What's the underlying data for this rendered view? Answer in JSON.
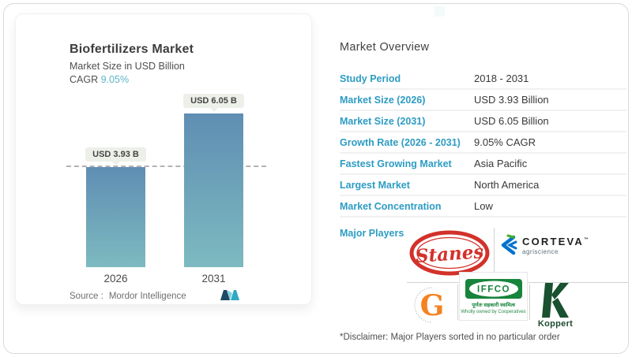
{
  "chart": {
    "title": "Biofertilizers Market",
    "subtitle": "Market Size in USD Billion",
    "cagr_label": "CAGR",
    "cagr_value": "9.05%",
    "source_label": "Source :",
    "source_value": "Mordor Intelligence",
    "chart_data": {
      "type": "bar",
      "categories": [
        "2026",
        "2031"
      ],
      "values": [
        3.93,
        6.05
      ],
      "bar_labels": [
        "USD 3.93 B",
        "USD 6.05 B"
      ],
      "title": "Biofertilizers Market",
      "ylabel": "Market Size in USD Billion",
      "ylim": [
        0,
        6.5
      ],
      "grid": "single dashed horizontal reference line at first bar value (3.93)",
      "legend_position": "none"
    }
  },
  "overview": {
    "title": "Market Overview",
    "rows": [
      {
        "label": "Study Period",
        "value": "2018 - 2031"
      },
      {
        "label": "Market Size (2026)",
        "value": "USD 3.93 Billion"
      },
      {
        "label": "Market Size (2031)",
        "value": "USD 6.05 Billion"
      },
      {
        "label": "Growth Rate (2026 - 2031)",
        "value": "9.05% CAGR"
      },
      {
        "label": "Fastest Growing Market",
        "value": "Asia Pacific"
      },
      {
        "label": "Largest Market",
        "value": "North America"
      },
      {
        "label": "Market Concentration",
        "value": "Low"
      }
    ],
    "major_players_label": "Major Players",
    "players": {
      "stanes": "Stanes",
      "corteva": "CORTEVA",
      "corteva_tm": "™",
      "corteva_sub": "agriscience",
      "gsfc": "G",
      "iffco": "IFFCO",
      "iffco_hindi": "पूर्णतः सहकारी स्वामित्व",
      "iffco_sub": "Wholly owned by Cooperatives",
      "koppert": "Koppert"
    },
    "disclaimer": "*Disclaimer: Major Players sorted in no particular order"
  },
  "colors": {
    "accent_blue": "#2d9cc3",
    "cagr_teal": "#5db5c9",
    "bar_gradient_top": "#5f8eb3",
    "bar_gradient_bottom": "#7dbac0",
    "label_box_bg": "#edf0e9",
    "stanes_red": "#d3312b",
    "corteva_blue": "#0072ce",
    "corteva_green": "#43b02a",
    "iffco_green": "#17843b",
    "koppert_green": "#1a5130",
    "gsfc_orange": "#f58220",
    "mordor_navy": "#1c4966",
    "mordor_teal": "#2fa9c4"
  }
}
